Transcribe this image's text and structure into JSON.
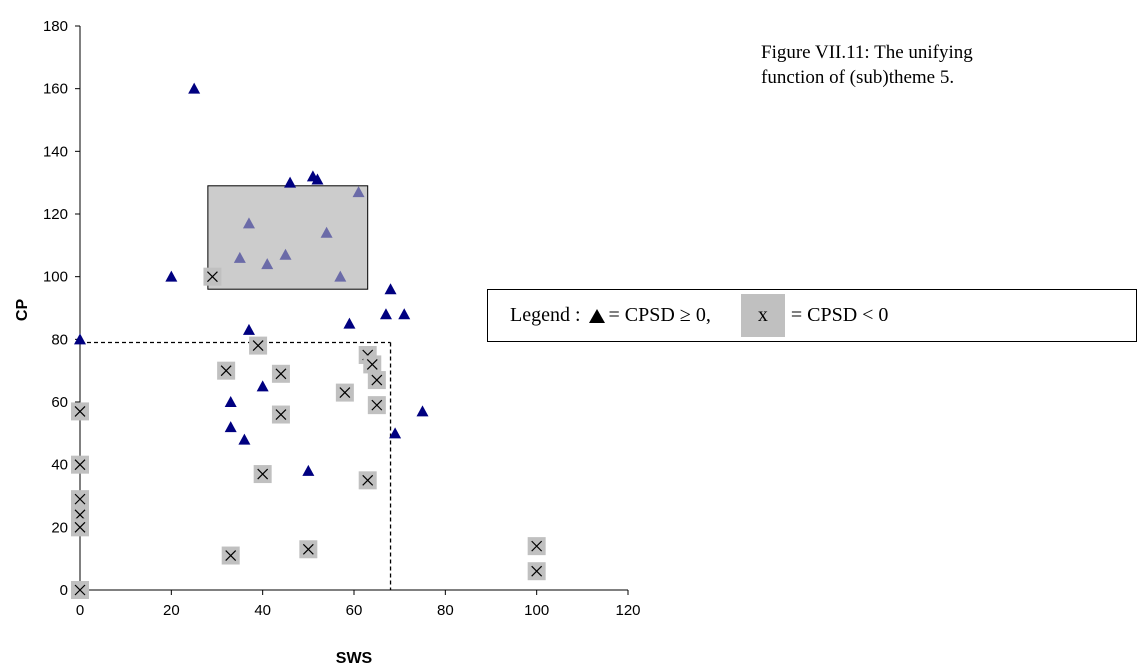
{
  "caption": {
    "line1": "Figure VII.11: The unifying",
    "line2": "function of (sub)theme 5."
  },
  "legend": {
    "prefix": "Legend :",
    "positive_label": "= CPSD ≥ 0,",
    "negative_symbol": "x",
    "negative_label": "= CPSD < 0"
  },
  "chart_data": {
    "type": "scatter",
    "xlabel": "SWS",
    "ylabel": "CP",
    "xlim": [
      0,
      120
    ],
    "ylim": [
      0,
      180
    ],
    "xticks": [
      0,
      20,
      40,
      60,
      80,
      100,
      120
    ],
    "yticks": [
      0,
      20,
      40,
      60,
      80,
      100,
      120,
      140,
      160,
      180
    ],
    "grid": false,
    "legend_position": "right",
    "series": [
      {
        "marker": "triangle",
        "color": "#000080",
        "points": [
          [
            25,
            160
          ],
          [
            20,
            100
          ],
          [
            0,
            80
          ],
          [
            37,
            83
          ],
          [
            46,
            130
          ],
          [
            51,
            132
          ],
          [
            52,
            131
          ],
          [
            61,
            127
          ],
          [
            37,
            117
          ],
          [
            54,
            114
          ],
          [
            35,
            106
          ],
          [
            41,
            104
          ],
          [
            45,
            107
          ],
          [
            57,
            100
          ],
          [
            68,
            96
          ],
          [
            67,
            88
          ],
          [
            71,
            88
          ],
          [
            59,
            85
          ],
          [
            33,
            60
          ],
          [
            40,
            65
          ],
          [
            33,
            52
          ],
          [
            36,
            48
          ],
          [
            69,
            50
          ],
          [
            75,
            57
          ],
          [
            50,
            38
          ]
        ]
      },
      {
        "marker": "x-box",
        "color": "#c0c0c0",
        "points": [
          [
            29,
            100
          ],
          [
            39,
            78
          ],
          [
            32,
            70
          ],
          [
            44,
            69
          ],
          [
            63,
            75
          ],
          [
            64,
            72
          ],
          [
            65,
            67
          ],
          [
            58,
            63
          ],
          [
            65,
            59
          ],
          [
            44,
            56
          ],
          [
            0,
            57
          ],
          [
            0,
            40
          ],
          [
            40,
            37
          ],
          [
            63,
            35
          ],
          [
            0,
            29
          ],
          [
            0,
            24
          ],
          [
            0,
            20
          ],
          [
            50,
            13
          ],
          [
            33,
            11
          ],
          [
            100,
            14
          ],
          [
            100,
            6
          ],
          [
            0,
            0
          ]
        ]
      }
    ],
    "shaded_region": {
      "x": [
        28,
        63
      ],
      "y": [
        96,
        129
      ]
    },
    "dashed_bounds": {
      "x_max": 68,
      "y_max": 79
    }
  }
}
